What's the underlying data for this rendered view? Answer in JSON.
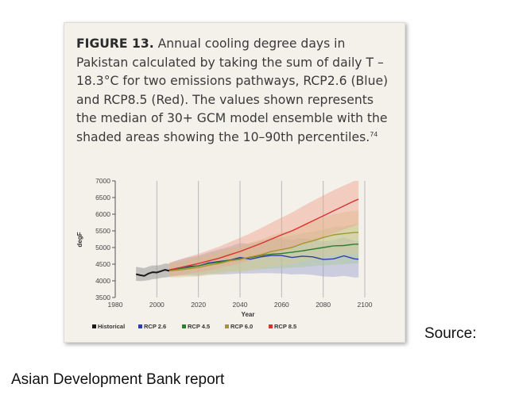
{
  "figure": {
    "label": "FIGURE 13.",
    "caption": " Annual cooling degree days in Pakistan calculated by taking the sum of daily T – 18.3°C for two emissions pathways, RCP2.6 (Blue) and RCP8.5 (Red). The values shown represents the median of 30+ GCM model ensemble with the shaded areas showing the 10–90th percentiles.",
    "footnote": "74"
  },
  "source_label": "Source:",
  "credit": "Asian Development Bank report",
  "chart_data": {
    "type": "line",
    "xlabel": "Year",
    "ylabel": "degF",
    "xlim": [
      1980,
      2100
    ],
    "ylim": [
      3500,
      7000
    ],
    "x_ticks": [
      1980,
      2000,
      2020,
      2040,
      2060,
      2080,
      2100
    ],
    "y_ticks": [
      3500,
      4000,
      4500,
      5000,
      5500,
      6000,
      6500,
      7000
    ],
    "grid": "vertical",
    "legend_position": "bottom",
    "series": [
      {
        "name": "Historical",
        "color": "#1a1a1a",
        "x": [
          1990,
          1992,
          1994,
          1996,
          1998,
          2000,
          2002,
          2004,
          2006
        ],
        "values": [
          4200,
          4170,
          4150,
          4220,
          4260,
          4250,
          4290,
          4330,
          4300
        ],
        "low": [
          4000,
          3990,
          4000,
          4020,
          4050,
          4060,
          4090,
          4100,
          4120
        ],
        "high": [
          4420,
          4400,
          4380,
          4430,
          4460,
          4460,
          4480,
          4520,
          4510
        ]
      },
      {
        "name": "RCP 2.6",
        "color": "#2b3fa8",
        "band_color": "#9c9fd2",
        "x": [
          2006,
          2010,
          2015,
          2020,
          2025,
          2030,
          2035,
          2040,
          2045,
          2050,
          2055,
          2060,
          2065,
          2070,
          2075,
          2080,
          2085,
          2090,
          2095,
          2097
        ],
        "values": [
          4320,
          4380,
          4430,
          4450,
          4540,
          4580,
          4620,
          4700,
          4650,
          4720,
          4760,
          4760,
          4700,
          4740,
          4720,
          4640,
          4660,
          4750,
          4660,
          4650
        ],
        "low": [
          4120,
          4150,
          4160,
          4150,
          4200,
          4190,
          4200,
          4220,
          4220,
          4230,
          4230,
          4220,
          4190,
          4200,
          4180,
          4130,
          4120,
          4150,
          4100,
          4100
        ],
        "high": [
          4520,
          4620,
          4700,
          4760,
          4860,
          4950,
          5030,
          5140,
          5100,
          5200,
          5290,
          5280,
          5230,
          5270,
          5240,
          5180,
          5220,
          5300,
          5200,
          5200
        ]
      },
      {
        "name": "RCP 4.5",
        "color": "#2e7d2e",
        "band_color": "#a6c89a",
        "x": [
          2006,
          2010,
          2015,
          2020,
          2025,
          2030,
          2035,
          2040,
          2045,
          2050,
          2055,
          2060,
          2065,
          2070,
          2075,
          2080,
          2085,
          2090,
          2095,
          2097
        ],
        "values": [
          4320,
          4360,
          4400,
          4450,
          4520,
          4560,
          4620,
          4660,
          4700,
          4760,
          4800,
          4820,
          4860,
          4900,
          4950,
          5000,
          5050,
          5060,
          5100,
          5100
        ],
        "low": [
          4150,
          4170,
          4190,
          4200,
          4230,
          4250,
          4280,
          4300,
          4320,
          4350,
          4370,
          4380,
          4400,
          4410,
          4440,
          4460,
          4480,
          4500,
          4520,
          4520
        ],
        "high": [
          4500,
          4560,
          4640,
          4720,
          4820,
          4900,
          4980,
          5050,
          5120,
          5200,
          5260,
          5300,
          5360,
          5420,
          5480,
          5540,
          5610,
          5640,
          5700,
          5700
        ]
      },
      {
        "name": "RCP 6.0",
        "color": "#a89530",
        "band_color": "#d9c98e",
        "x": [
          2006,
          2010,
          2015,
          2020,
          2025,
          2030,
          2035,
          2040,
          2045,
          2050,
          2055,
          2060,
          2065,
          2070,
          2075,
          2080,
          2085,
          2090,
          2095,
          2097
        ],
        "values": [
          4300,
          4320,
          4360,
          4400,
          4470,
          4520,
          4600,
          4640,
          4720,
          4780,
          4880,
          4940,
          5000,
          5120,
          5200,
          5300,
          5380,
          5420,
          5450,
          5450
        ],
        "low": [
          4100,
          4100,
          4120,
          4130,
          4170,
          4200,
          4250,
          4270,
          4320,
          4360,
          4420,
          4460,
          4500,
          4580,
          4630,
          4700,
          4760,
          4790,
          4810,
          4810
        ],
        "high": [
          4520,
          4560,
          4620,
          4690,
          4790,
          4860,
          4970,
          5040,
          5150,
          5240,
          5360,
          5450,
          5530,
          5680,
          5780,
          5900,
          6000,
          6060,
          6100,
          6100
        ]
      },
      {
        "name": "RCP 8.5",
        "color": "#d93030",
        "band_color": "#f0a28c",
        "x": [
          2006,
          2010,
          2015,
          2020,
          2025,
          2030,
          2035,
          2040,
          2045,
          2050,
          2055,
          2060,
          2065,
          2070,
          2075,
          2080,
          2085,
          2090,
          2095,
          2097
        ],
        "values": [
          4330,
          4380,
          4450,
          4520,
          4600,
          4680,
          4780,
          4880,
          5000,
          5120,
          5250,
          5380,
          5500,
          5650,
          5800,
          5950,
          6100,
          6250,
          6400,
          6450
        ],
        "low": [
          4130,
          4160,
          4210,
          4260,
          4310,
          4380,
          4450,
          4530,
          4620,
          4700,
          4800,
          4900,
          4990,
          5100,
          5210,
          5320,
          5430,
          5540,
          5650,
          5690
        ],
        "high": [
          4550,
          4620,
          4720,
          4810,
          4920,
          5030,
          5160,
          5290,
          5430,
          5580,
          5740,
          5900,
          6050,
          6230,
          6400,
          6560,
          6720,
          6860,
          7000,
          7000
        ]
      }
    ]
  }
}
